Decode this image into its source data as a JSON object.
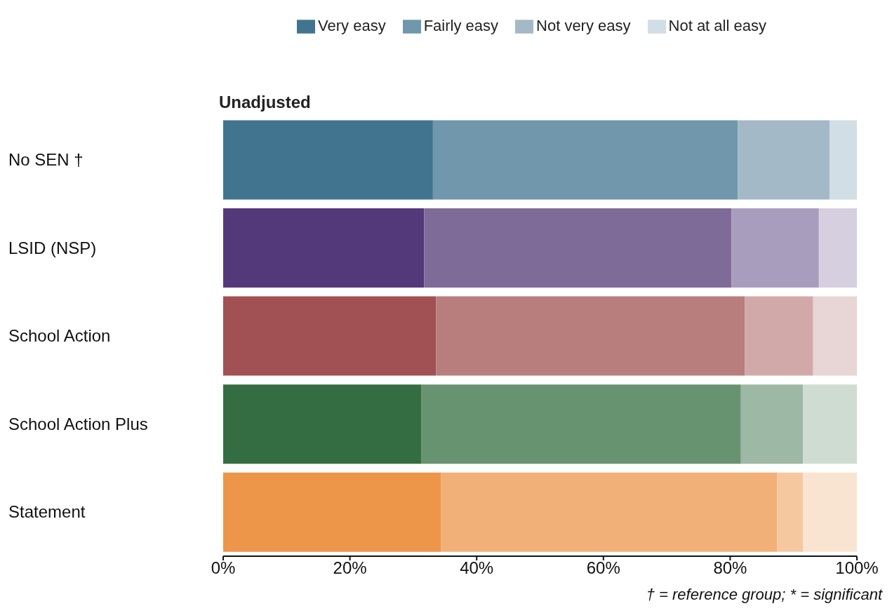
{
  "chart_data": {
    "type": "bar",
    "orientation": "horizontal",
    "stacked": true,
    "title": "Unadjusted",
    "legend": "top",
    "categories": [
      "No SEN †",
      "LSID (NSP)",
      "School Action",
      "School Action Plus",
      "Statement"
    ],
    "series": [
      {
        "name": "Very easy",
        "color": "#41748f",
        "colors": [
          "#41748f",
          "#54397a",
          "#a15053",
          "#346d42",
          "#ed9649"
        ],
        "values": [
          33.1,
          31.7,
          33.6,
          31.3,
          34.4
        ]
      },
      {
        "name": "Fairly easy",
        "color": "#7097ab",
        "colors": [
          "#7097ab",
          "#7f6b98",
          "#b87d7d",
          "#689371",
          "#f1b077"
        ],
        "values": [
          48.1,
          48.5,
          48.7,
          50.4,
          53.0
        ]
      },
      {
        "name": "Not very easy",
        "color": "#a3b9c8",
        "colors": [
          "#a3b9c8",
          "#a99dbd",
          "#d2a9a9",
          "#9db8a5",
          "#f5c8a0"
        ],
        "values": [
          14.5,
          13.8,
          10.8,
          9.8,
          4.1
        ]
      },
      {
        "name": "Not at all easy",
        "color": "#d1dee5",
        "colors": [
          "#d1dee5",
          "#d6cfe0",
          "#e8d5d5",
          "#cfdcd2",
          "#f9e4d2"
        ],
        "values": [
          4.3,
          6.0,
          6.9,
          8.5,
          8.5
        ]
      }
    ],
    "xlim": [
      0,
      100
    ],
    "xticks": [
      {
        "value": 0,
        "label": "0%"
      },
      {
        "value": 20,
        "label": "20%"
      },
      {
        "value": 40,
        "label": "40%"
      },
      {
        "value": 60,
        "label": "60%"
      },
      {
        "value": 80,
        "label": "80%"
      },
      {
        "value": 100,
        "label": "100%"
      }
    ],
    "annotations": [
      "† = reference group; * = significant"
    ]
  }
}
